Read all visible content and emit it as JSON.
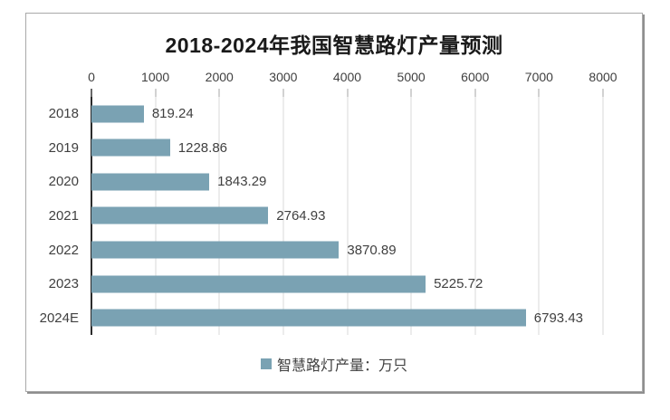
{
  "chart_data": {
    "type": "bar",
    "orientation": "horizontal",
    "title": "2018-2024年我国智慧路灯产量预测",
    "categories": [
      "2018",
      "2019",
      "2020",
      "2021",
      "2022",
      "2023",
      "2024E"
    ],
    "values": [
      819.24,
      1228.86,
      1843.29,
      2764.93,
      3870.89,
      5225.72,
      6793.43
    ],
    "value_labels": [
      "819.24",
      "1228.86",
      "1843.29",
      "2764.93",
      "3870.89",
      "5225.72",
      "6793.43"
    ],
    "x_axis": {
      "position": "top",
      "min": 0,
      "max": 8000,
      "tick_step": 1000,
      "ticks": [
        0,
        1000,
        2000,
        3000,
        4000,
        5000,
        6000,
        7000,
        8000
      ]
    },
    "grid": true,
    "bar_color": "#7aa2b3",
    "legend_position": "bottom",
    "legend": [
      {
        "label": "智慧路灯产量：万只",
        "color": "#7aa2b3"
      }
    ],
    "colors": {
      "title_text": "#1a1a1a",
      "axis_text": "#404040",
      "gridline": "#d9d9d9",
      "axis_line": "#2b2b2b",
      "frame_border": "#a9a9a9"
    }
  }
}
